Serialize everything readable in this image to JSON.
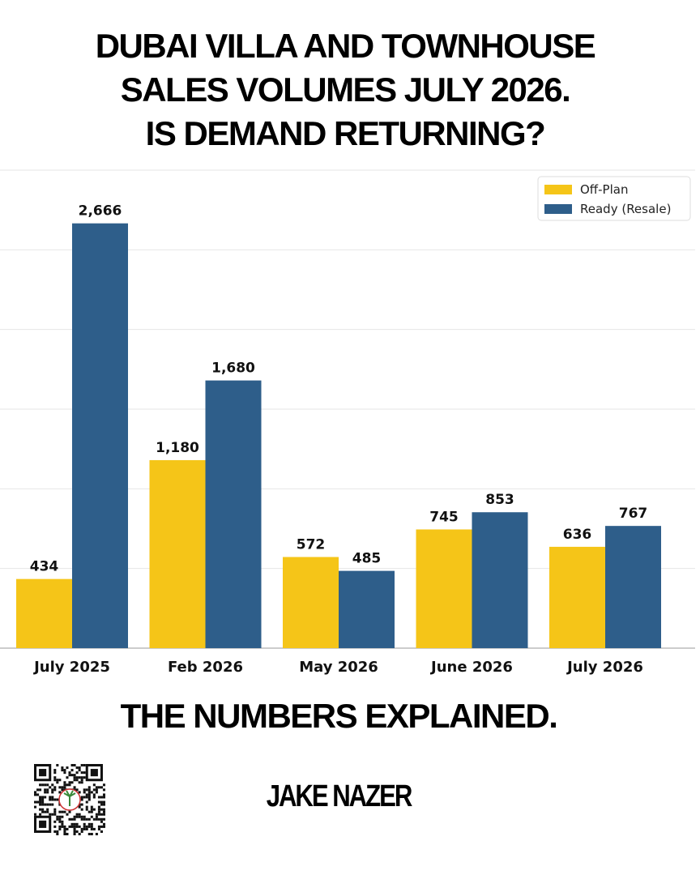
{
  "header": {
    "title_lines": [
      "DUBAI VILLA AND TOWNHOUSE",
      "SALES VOLUMES JULY 2026.",
      "IS DEMAND RETURNING?"
    ]
  },
  "chart_data": {
    "type": "bar",
    "title": "",
    "xlabel": "",
    "ylabel": "",
    "ylim": [
      0,
      3000
    ],
    "grid": true,
    "legend_position": "top-right",
    "categories": [
      "July 2025",
      "Feb 2026",
      "May 2026",
      "June 2026",
      "July 2026"
    ],
    "series": [
      {
        "name": "Off-Plan",
        "color": "#F5C518",
        "values": [
          434,
          1180,
          572,
          745,
          636
        ],
        "labels": [
          "434",
          "1,180",
          "572",
          "745",
          "636"
        ]
      },
      {
        "name": "Ready (Resale)",
        "color": "#2E5E8A",
        "values": [
          2666,
          1680,
          485,
          853,
          767
        ],
        "labels": [
          "2,666",
          "1,680",
          "485",
          "853",
          "767"
        ]
      }
    ]
  },
  "footer": {
    "subheading": "THE NUMBERS EXPLAINED.",
    "brand": "JAKE NAZER",
    "qr_icon": "qr-code-icon"
  }
}
